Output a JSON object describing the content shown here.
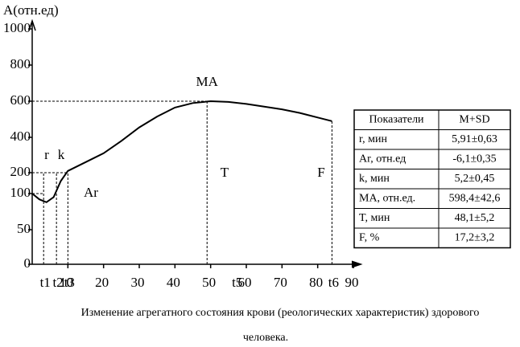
{
  "chart_data": {
    "type": "line",
    "y_label": "А(отн.ед)",
    "ylim": [
      0,
      1000
    ],
    "yticks": [
      0,
      50,
      100,
      200,
      400,
      600,
      800,
      1000
    ],
    "xlim": [
      0,
      90
    ],
    "xticks": [
      10,
      20,
      30,
      40,
      50,
      60,
      70,
      80,
      90
    ],
    "x": [
      0,
      2,
      4,
      6,
      8,
      10,
      15,
      20,
      25,
      30,
      35,
      40,
      45,
      50,
      55,
      60,
      65,
      70,
      75,
      80,
      84
    ],
    "series": [
      {
        "color": "#000000",
        "values": [
          100,
          92,
          88,
          95,
          160,
          210,
          260,
          310,
          380,
          455,
          515,
          565,
          590,
          600,
          596,
          585,
          570,
          555,
          535,
          510,
          490
        ]
      }
    ],
    "markers": [
      {
        "label": "t1",
        "value": 3.2
      },
      {
        "label": "t2",
        "value": 6.8
      },
      {
        "label": "t3",
        "value": 10
      },
      {
        "label": "t5",
        "value": 57
      },
      {
        "label": "t6",
        "value": 84
      }
    ],
    "ma_point": {
      "label": "MA",
      "x": 49,
      "y": 600
    },
    "annotations": [
      "r",
      "k",
      "Ar",
      "T",
      "F"
    ],
    "table": {
      "header": [
        "Показатели",
        "M+SD"
      ],
      "rows": [
        [
          "r, мин",
          "5,91±0,63"
        ],
        [
          "Ar, отн.ед",
          "-6,1±0,35"
        ],
        [
          "k, мин",
          "5,2±0,45"
        ],
        [
          "MA, отн.ед.",
          "598,4±42,6"
        ],
        [
          "T, мин",
          "48,1±5,2"
        ],
        [
          "F, %",
          "17,2±3,2"
        ]
      ]
    },
    "caption": [
      "Изменение агрегатного состояния крови (реологических характеристик) здорового",
      "человека."
    ]
  }
}
